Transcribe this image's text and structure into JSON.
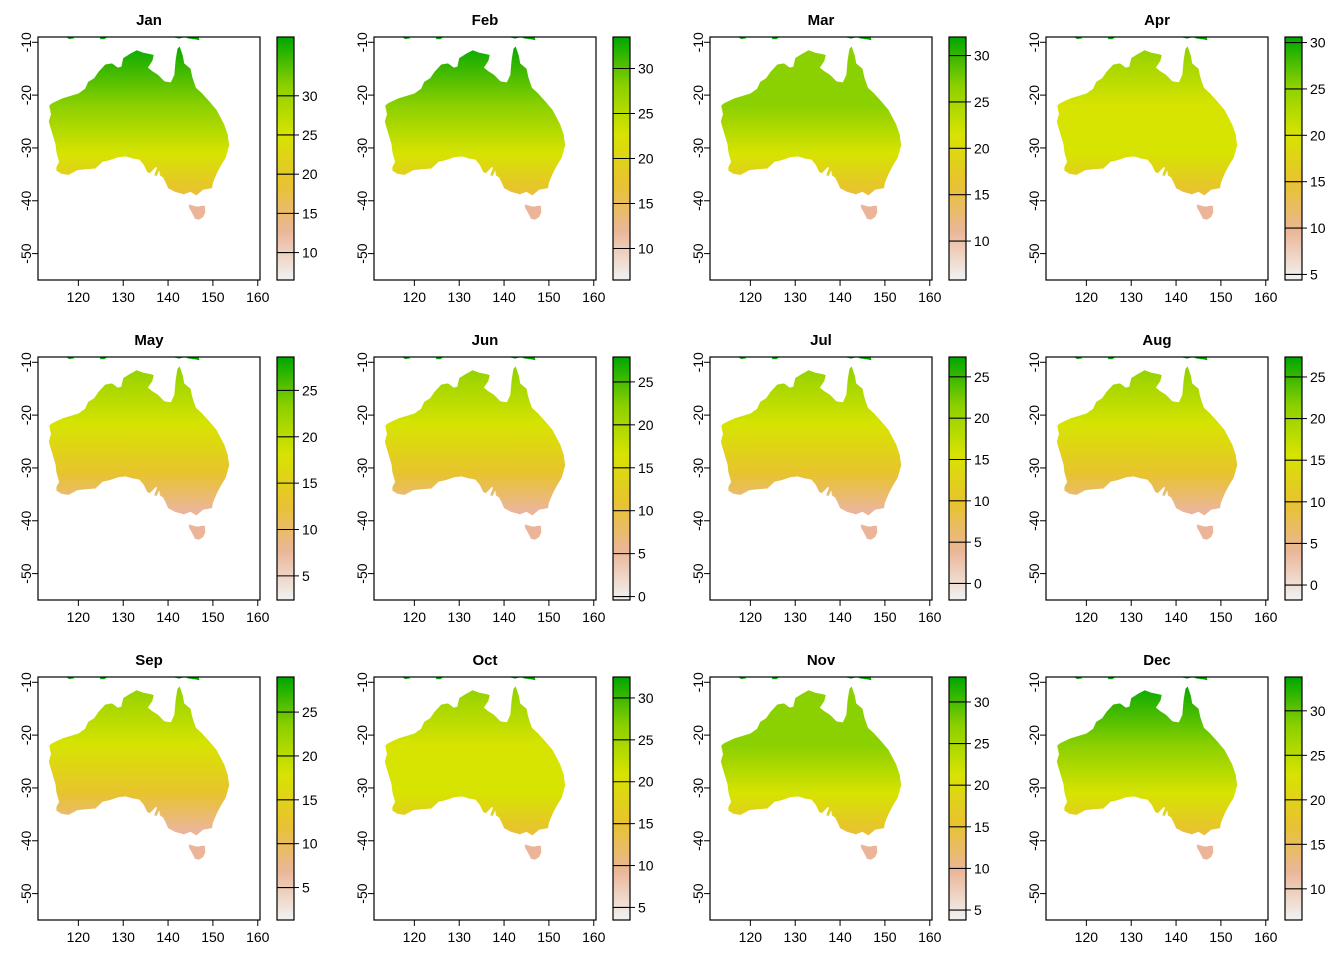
{
  "figure": {
    "x_axis": {
      "ticks": [
        120,
        130,
        140,
        150,
        160
      ],
      "range": [
        111,
        160.5
      ]
    },
    "y_axis": {
      "ticks": [
        -10,
        -20,
        -30,
        -40,
        -50
      ],
      "range": [
        -55,
        -9
      ]
    },
    "color_ramp": [
      "#f2f2f2",
      "#ebb698",
      "#e8c32e",
      "#d7e301",
      "#8bd000",
      "#00a600"
    ]
  },
  "panels": [
    {
      "title": "Jan",
      "legend_range": [
        6.5,
        37.5
      ],
      "legend_ticks": [
        10,
        15,
        20,
        25,
        30
      ],
      "label_ticks": [
        "10",
        "15",
        "20",
        "25",
        "30"
      ],
      "bias": 0.78
    },
    {
      "title": "Feb",
      "legend_range": [
        6.5,
        33.5
      ],
      "legend_ticks": [
        10,
        15,
        20,
        25,
        30
      ],
      "label_ticks": [
        "10",
        "15",
        "20",
        "25",
        "30"
      ],
      "bias": 0.77
    },
    {
      "title": "Mar",
      "legend_range": [
        5.8,
        32.0
      ],
      "legend_ticks": [
        10,
        15,
        20,
        25,
        30
      ],
      "label_ticks": [
        "10",
        "15",
        "20",
        "25",
        "30"
      ],
      "bias": 0.7
    },
    {
      "title": "Apr",
      "legend_range": [
        4.4,
        30.6
      ],
      "legend_ticks": [
        5,
        10,
        15,
        20,
        25,
        30
      ],
      "label_ticks": [
        "5",
        "10",
        "15",
        "20",
        "25",
        "30"
      ],
      "bias": 0.58
    },
    {
      "title": "May",
      "legend_range": [
        2.4,
        28.6
      ],
      "legend_ticks": [
        5,
        10,
        15,
        20,
        25
      ],
      "label_ticks": [
        "5",
        "10",
        "15",
        "20",
        "25"
      ],
      "bias": 0.42
    },
    {
      "title": "Jun",
      "legend_range": [
        -0.4,
        27.9
      ],
      "legend_ticks": [
        0,
        5,
        10,
        15,
        20,
        25
      ],
      "label_ticks": [
        "0",
        "5",
        "10",
        "15",
        "20",
        "25"
      ],
      "bias": 0.34
    },
    {
      "title": "Jul",
      "legend_range": [
        -2.0,
        27.4
      ],
      "legend_ticks": [
        0,
        5,
        10,
        15,
        20,
        25
      ],
      "label_ticks": [
        "0",
        "5",
        "10",
        "15",
        "20",
        "25"
      ],
      "bias": 0.3
    },
    {
      "title": "Aug",
      "legend_range": [
        -1.8,
        27.4
      ],
      "legend_ticks": [
        0,
        5,
        10,
        15,
        20,
        25
      ],
      "label_ticks": [
        "0",
        "5",
        "10",
        "15",
        "20",
        "25"
      ],
      "bias": 0.34
    },
    {
      "title": "Sep",
      "legend_range": [
        1.3,
        29.0
      ],
      "legend_ticks": [
        5,
        10,
        15,
        20,
        25
      ],
      "label_ticks": [
        "5",
        "10",
        "15",
        "20",
        "25"
      ],
      "bias": 0.45
    },
    {
      "title": "Oct",
      "legend_range": [
        3.5,
        32.5
      ],
      "legend_ticks": [
        5,
        10,
        15,
        20,
        25,
        30
      ],
      "label_ticks": [
        "5",
        "10",
        "15",
        "20",
        "25",
        "30"
      ],
      "bias": 0.58
    },
    {
      "title": "Nov",
      "legend_range": [
        3.8,
        33.0
      ],
      "legend_ticks": [
        5,
        10,
        15,
        20,
        25,
        30
      ],
      "label_ticks": [
        "5",
        "10",
        "15",
        "20",
        "25",
        "30"
      ],
      "bias": 0.72
    },
    {
      "title": "Dec",
      "legend_range": [
        6.5,
        33.8
      ],
      "legend_ticks": [
        10,
        15,
        20,
        25,
        30
      ],
      "label_ticks": [
        "10",
        "15",
        "20",
        "25",
        "30"
      ],
      "bias": 0.8
    }
  ]
}
